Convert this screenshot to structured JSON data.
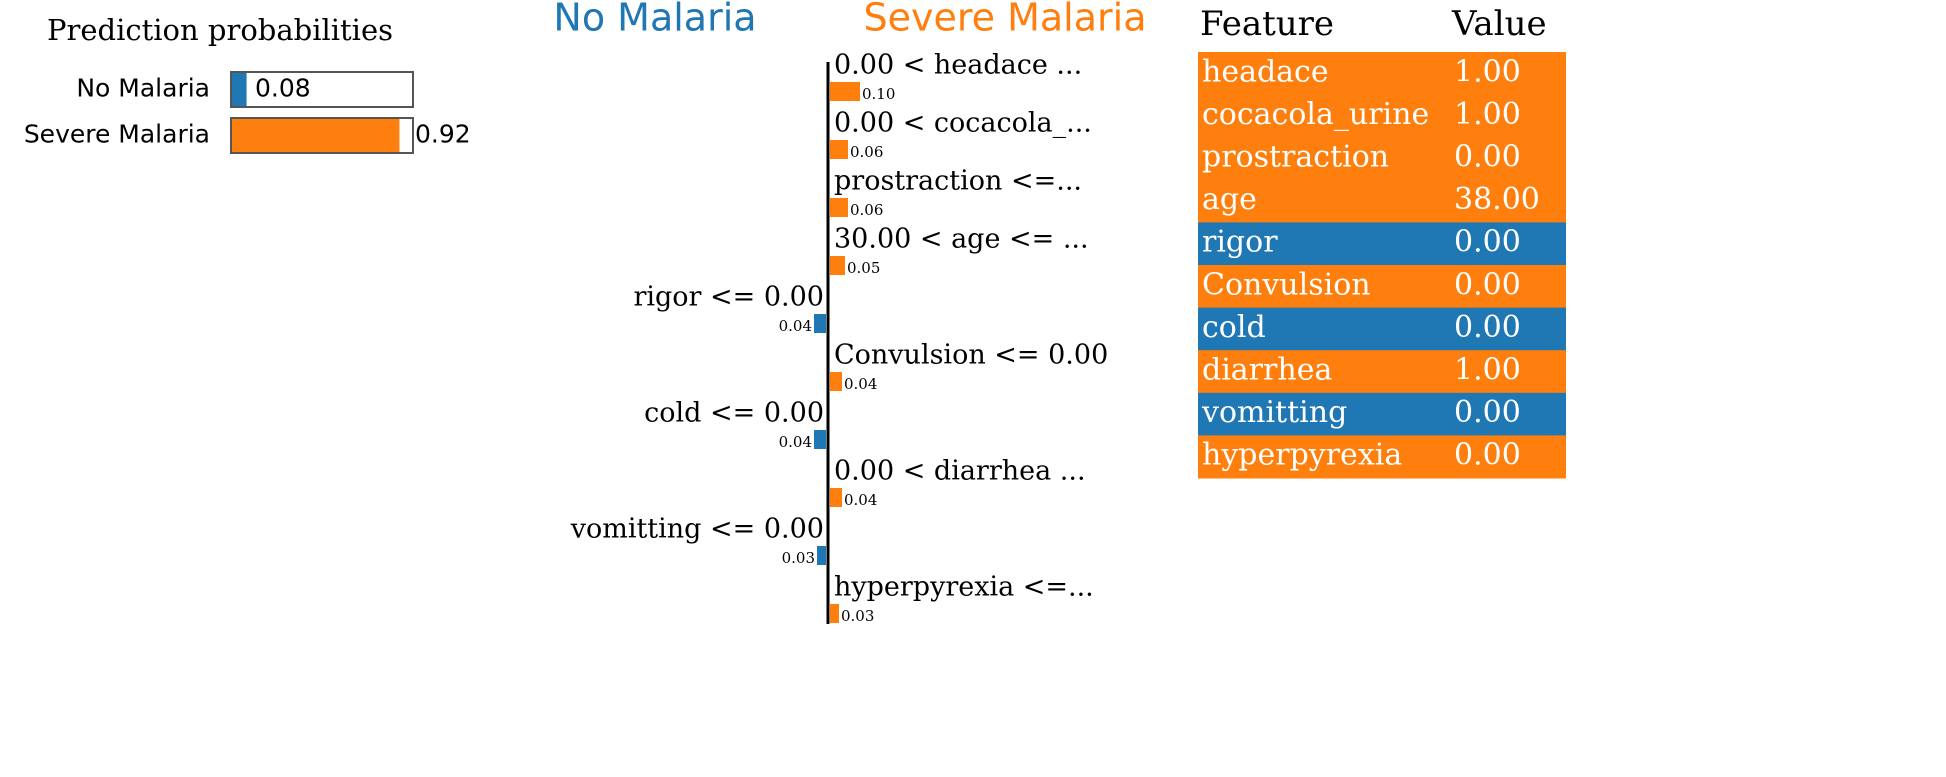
{
  "prediction_probabilities": {
    "title": "Prediction probabilities",
    "classes": [
      {
        "name": "No Malaria",
        "color": "#1f77b4",
        "value": 0.08
      },
      {
        "name": "Severe Malaria",
        "color": "#ff7f0e",
        "value": 0.92
      }
    ]
  },
  "explanation": {
    "features": [
      {
        "label": "0.00 < headace ...",
        "value": 0.1,
        "value_label": "0.10",
        "class_index": 1
      },
      {
        "label": "0.00 < cocacola_...",
        "value": 0.06,
        "class_index": 1
      },
      {
        "label": "prostraction <=...",
        "value": 0.06,
        "class_index": 1
      },
      {
        "label": "30.00 < age <= ...",
        "value": 0.05,
        "class_index": 1
      },
      {
        "label": "rigor <= 0.00",
        "value": 0.04,
        "class_index": 0
      },
      {
        "label": "Convulsion <= 0.00",
        "value": 0.04,
        "class_index": 1
      },
      {
        "label": "cold <= 0.00",
        "value": 0.04,
        "class_index": 0
      },
      {
        "label": "0.00 < diarrhea ...",
        "value": 0.04,
        "class_index": 1
      },
      {
        "label": "vomitting <= 0.00",
        "value": 0.03,
        "class_index": 0
      },
      {
        "label": "hyperpyrexia <=...",
        "value": 0.03,
        "class_index": 1
      }
    ]
  },
  "table": {
    "columns": [
      "Feature",
      "Value"
    ],
    "rows": [
      {
        "feature": "headace",
        "value": "1.00",
        "class_index": 1
      },
      {
        "feature": "cocacola_urine",
        "value": "1.00",
        "class_index": 1
      },
      {
        "feature": "prostraction",
        "value": "0.00",
        "class_index": 1
      },
      {
        "feature": "age",
        "value": "38.00",
        "class_index": 1
      },
      {
        "feature": "rigor",
        "value": "0.00",
        "class_index": 0
      },
      {
        "feature": "Convulsion",
        "value": "0.00",
        "class_index": 1
      },
      {
        "feature": "cold",
        "value": "0.00",
        "class_index": 0
      },
      {
        "feature": "diarrhea",
        "value": "1.00",
        "class_index": 1
      },
      {
        "feature": "vomitting",
        "value": "0.00",
        "class_index": 0
      },
      {
        "feature": "hyperpyrexia",
        "value": "0.00",
        "class_index": 1
      }
    ]
  }
}
